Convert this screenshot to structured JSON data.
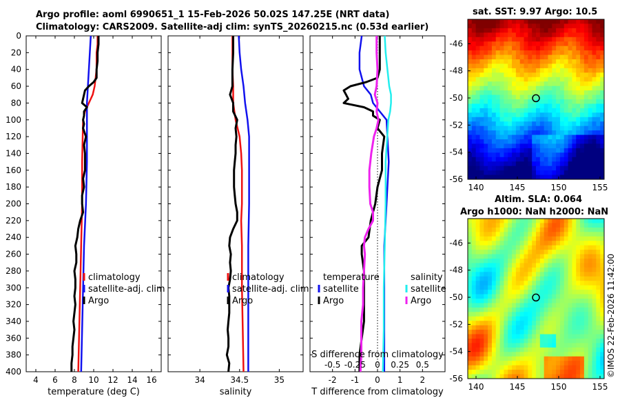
{
  "header": {
    "title_line1": "Argo profile: aoml 6990651_1 15-Feb-2026 50.02S 147.25E (NRT data)",
    "title_line2": "Climatology: CARS2009. Satellite-adj clim: synTS_20260215.nc (0.53d earlier)"
  },
  "maps": {
    "sst_title": "sat. SST: 9.97 Argo: 10.5",
    "sla_title1": "Altim. SLA: 0.064",
    "sla_title2": "Argo h1000: NaN h2000: NaN",
    "lon_ticks": [
      "140",
      "145",
      "150",
      "155"
    ],
    "lat_ticks": [
      "-46",
      "-48",
      "-50",
      "-52",
      "-54",
      "-56"
    ],
    "lon_range": [
      139,
      155.5
    ],
    "lat_range": [
      -56,
      -44.2
    ],
    "marker": {
      "lon": 147.25,
      "lat": -50.02
    }
  },
  "footer": {
    "stamp": "©IMOS 22-Feb-2026 11:42:00"
  },
  "colors": {
    "clim": "#ee1111",
    "sat": "#1111ee",
    "argo": "#000000",
    "sat_s": "#22eeee",
    "argo_s": "#ee22ee"
  },
  "chart_data": [
    {
      "type": "line",
      "xlabel": "temperature (deg C)",
      "ylabel": "",
      "xlim": [
        3,
        17
      ],
      "ylim": [
        0,
        400
      ],
      "xticks": [
        "4",
        "6",
        "8",
        "10",
        "12",
        "14",
        "16"
      ],
      "yticks": [
        "0",
        "20",
        "40",
        "60",
        "80",
        "100",
        "120",
        "140",
        "160",
        "180",
        "200",
        "220",
        "240",
        "260",
        "280",
        "300",
        "320",
        "340",
        "360",
        "380",
        "400"
      ],
      "legend": [
        "climatology",
        "satellite-adj. clim",
        "Argo"
      ],
      "series": [
        {
          "name": "climatology",
          "depth": [
            0,
            10,
            20,
            30,
            40,
            50,
            60,
            70,
            80,
            90,
            100,
            150,
            200,
            250,
            300,
            350,
            400
          ],
          "values": [
            10.4,
            10.4,
            10.3,
            10.3,
            10.3,
            10.2,
            10.1,
            9.9,
            9.5,
            9.1,
            8.9,
            8.8,
            8.8,
            8.7,
            8.6,
            8.5,
            8.4
          ]
        },
        {
          "name": "satellite-adj. clim",
          "depth": [
            0,
            20,
            40,
            60,
            80,
            100,
            150,
            200,
            250,
            300,
            350,
            400
          ],
          "values": [
            9.7,
            9.6,
            9.5,
            9.4,
            9.3,
            9.3,
            9.3,
            9.2,
            9.0,
            8.9,
            8.8,
            8.7
          ]
        },
        {
          "name": "Argo",
          "depth": [
            0,
            10,
            20,
            30,
            40,
            50,
            55,
            60,
            65,
            70,
            75,
            80,
            85,
            90,
            95,
            100,
            105,
            110,
            120,
            130,
            140,
            150,
            160,
            170,
            180,
            190,
            200,
            210,
            220,
            230,
            240,
            250,
            260,
            270,
            280,
            290,
            300,
            310,
            320,
            330,
            340,
            350,
            360,
            370,
            380,
            390,
            400
          ],
          "values": [
            10.5,
            10.5,
            10.4,
            10.4,
            10.3,
            10.3,
            10.0,
            9.5,
            9.1,
            9.0,
            8.9,
            8.8,
            9.3,
            9.0,
            9.0,
            8.9,
            9.0,
            8.9,
            9.2,
            9.0,
            9.1,
            9.1,
            9.1,
            8.9,
            9.0,
            8.8,
            8.8,
            8.9,
            8.6,
            8.4,
            8.3,
            8.1,
            8.2,
            8.2,
            8.0,
            8.1,
            8.1,
            8.0,
            8.1,
            8.0,
            7.9,
            8.0,
            7.9,
            7.8,
            7.8,
            7.7,
            7.7
          ]
        }
      ]
    },
    {
      "type": "line",
      "xlabel": "salinity",
      "ylabel": "",
      "xlim": [
        33.6,
        35.3
      ],
      "ylim": [
        0,
        400
      ],
      "xticks": [
        "34",
        "34.5",
        "35"
      ],
      "legend": [
        "climatology",
        "satellite-adj. clim",
        "Argo"
      ],
      "series": [
        {
          "name": "climatology",
          "depth": [
            0,
            20,
            40,
            60,
            80,
            100,
            120,
            140,
            160,
            180,
            200,
            220,
            250,
            300,
            350,
            400
          ],
          "values": [
            34.41,
            34.41,
            34.41,
            34.42,
            34.42,
            34.45,
            34.5,
            34.52,
            34.53,
            34.53,
            34.53,
            34.52,
            34.53,
            34.53,
            34.54,
            34.55
          ]
        },
        {
          "name": "satellite-adj. clim",
          "depth": [
            0,
            20,
            40,
            60,
            80,
            100,
            120,
            130,
            140,
            150,
            200,
            250,
            300,
            350,
            400
          ],
          "values": [
            34.49,
            34.5,
            34.52,
            34.55,
            34.57,
            34.6,
            34.62,
            34.62,
            34.62,
            34.62,
            34.62,
            34.61,
            34.61,
            34.61,
            34.61
          ]
        },
        {
          "name": "Argo",
          "depth": [
            0,
            20,
            40,
            60,
            70,
            80,
            90,
            100,
            110,
            120,
            130,
            140,
            150,
            160,
            170,
            180,
            190,
            200,
            210,
            220,
            230,
            240,
            250,
            260,
            270,
            280,
            290,
            300,
            310,
            320,
            330,
            340,
            350,
            360,
            370,
            380,
            390,
            400
          ],
          "values": [
            34.42,
            34.42,
            34.41,
            34.41,
            34.38,
            34.42,
            34.42,
            34.47,
            34.45,
            34.46,
            34.45,
            34.45,
            34.44,
            34.43,
            34.43,
            34.43,
            34.44,
            34.45,
            34.47,
            34.47,
            34.42,
            34.38,
            34.37,
            34.39,
            34.38,
            34.39,
            34.38,
            34.36,
            34.37,
            34.37,
            34.37,
            34.36,
            34.35,
            34.36,
            34.36,
            34.34,
            34.37,
            34.36
          ]
        }
      ]
    },
    {
      "type": "line",
      "xlabel": "T difference from climatology",
      "xlabel2": "S difference from climatology",
      "ylabel": "",
      "xlim": [
        -3,
        3
      ],
      "s_xlim": [
        -0.75,
        0.75
      ],
      "ylim": [
        0,
        400
      ],
      "xticks": [
        "-2",
        "-1",
        "0",
        "1",
        "2"
      ],
      "s_xticks": [
        "-0.5",
        "-0.25",
        "0",
        "0.25",
        "0.5"
      ],
      "legend_t_title": "temperature",
      "legend_s_title": "salinity",
      "legend_t": [
        "satellite",
        "Argo"
      ],
      "legend_s": [
        "satellite",
        "Argo"
      ],
      "series": [
        {
          "name": "T satellite",
          "depth": [
            0,
            20,
            40,
            60,
            70,
            80,
            90,
            100,
            150,
            200,
            250,
            300,
            350,
            400
          ],
          "values": [
            -0.7,
            -0.8,
            -0.8,
            -0.6,
            -0.3,
            -0.2,
            0.1,
            0.4,
            0.5,
            0.4,
            0.3,
            0.3,
            0.3,
            0.3
          ]
        },
        {
          "name": "T Argo",
          "depth": [
            0,
            20,
            40,
            50,
            55,
            60,
            65,
            70,
            75,
            80,
            85,
            90,
            95,
            100,
            110,
            120,
            140,
            160,
            180,
            200,
            220,
            240,
            250,
            260,
            280,
            300,
            320,
            340,
            360,
            380,
            400
          ],
          "values": [
            0.1,
            0.1,
            0.1,
            0.0,
            -0.5,
            -1.2,
            -1.5,
            -1.4,
            -1.3,
            -1.5,
            -0.6,
            -0.2,
            -0.2,
            0.1,
            0.0,
            0.3,
            0.2,
            0.2,
            0.0,
            -0.1,
            -0.3,
            -0.4,
            -0.7,
            -0.7,
            -0.6,
            -0.6,
            -0.6,
            -0.6,
            -0.7,
            -0.8,
            -0.8
          ]
        },
        {
          "name": "S satellite",
          "depth": [
            0,
            20,
            40,
            60,
            70,
            80,
            90,
            100,
            150,
            200,
            250,
            300,
            350,
            400
          ],
          "values": [
            0.08,
            0.09,
            0.11,
            0.13,
            0.15,
            0.15,
            0.14,
            0.12,
            0.09,
            0.09,
            0.08,
            0.07,
            0.07,
            0.06
          ]
        },
        {
          "name": "S Argo",
          "depth": [
            0,
            20,
            40,
            60,
            70,
            80,
            90,
            100,
            110,
            120,
            140,
            160,
            180,
            200,
            210,
            220,
            230,
            240,
            250,
            260,
            280,
            300,
            320,
            340,
            360,
            380,
            400
          ],
          "values": [
            -0.01,
            -0.01,
            0.0,
            -0.01,
            -0.03,
            0.0,
            -0.01,
            0.01,
            -0.01,
            -0.04,
            -0.07,
            -0.09,
            -0.09,
            -0.08,
            -0.05,
            -0.05,
            -0.1,
            -0.14,
            -0.15,
            -0.14,
            -0.15,
            -0.16,
            -0.16,
            -0.18,
            -0.18,
            -0.18,
            -0.19
          ]
        }
      ]
    }
  ]
}
